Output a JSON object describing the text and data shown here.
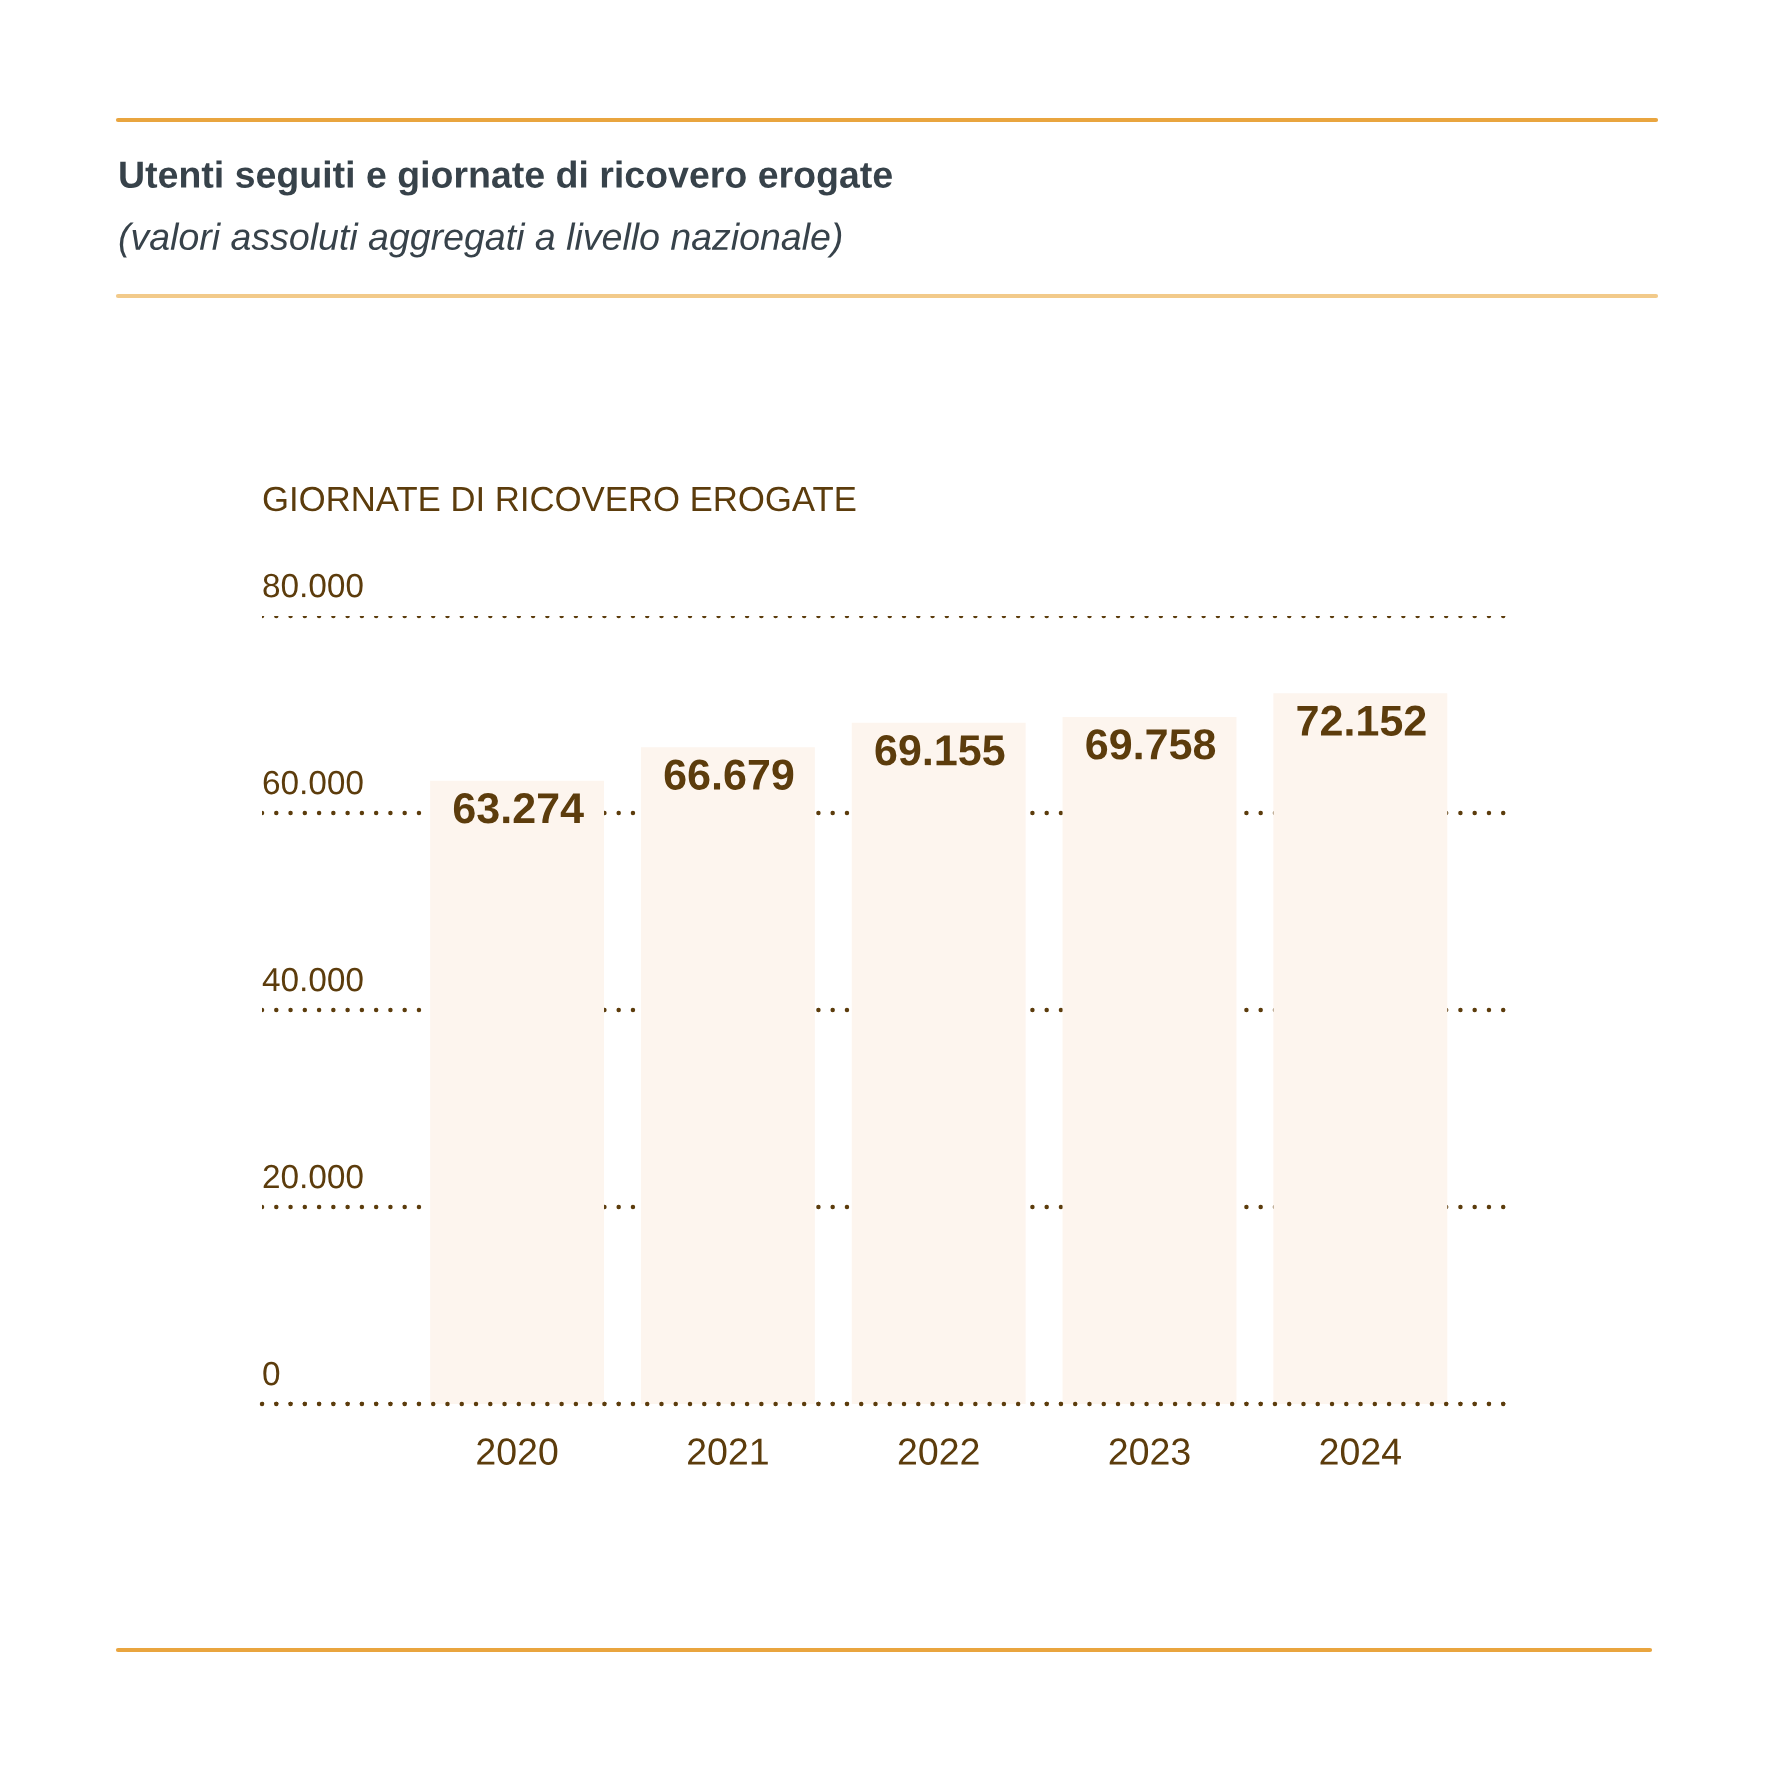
{
  "chart_data": {
    "type": "bar",
    "title": "Utenti seguiti e giornate di ricovero erogate",
    "subtitle": "(valori assoluti aggregati a livello nazionale)",
    "ylabel": "GIORNATE DI RICOVERO EROGATE",
    "categories": [
      "2020",
      "2021",
      "2022",
      "2023",
      "2024"
    ],
    "values": [
      63274,
      66679,
      69155,
      69758,
      72152
    ],
    "value_labels": [
      "63.274",
      "66.679",
      "69.155",
      "69.758",
      "72.152"
    ],
    "color": "#fdf5ee",
    "ylim": [
      0,
      80000
    ],
    "yticks": [
      0,
      {
        "value": 20000,
        "label": "20.000"
      },
      {
        "value": 40000,
        "label": "40.000"
      },
      {
        "value": 60000,
        "label": "60.000"
      },
      {
        "value": 80000,
        "label": "80.000"
      }
    ],
    "grid": "y"
  }
}
